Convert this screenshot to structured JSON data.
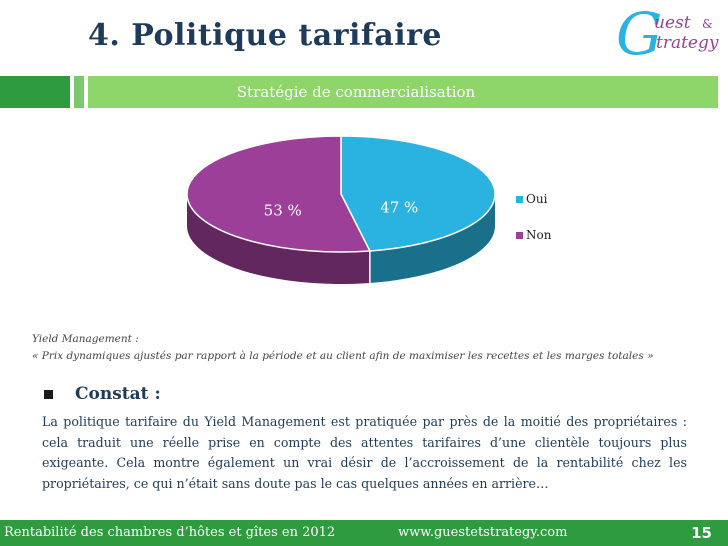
{
  "slide": {
    "title": "4. Politique tarifaire",
    "subtitle": "Stratégie de commercialisation"
  },
  "logo": {
    "letter": "G",
    "word1": "uest",
    "amp": "&",
    "word2": "trategy"
  },
  "chart_data": {
    "type": "pie",
    "title": "",
    "slices": [
      {
        "name": "Oui",
        "value": 47,
        "label": "47 %",
        "color": "#2ab3e0"
      },
      {
        "name": "Non",
        "value": 53,
        "label": "53 %",
        "color": "#9c3f98"
      }
    ],
    "legend_position": "right",
    "style": "3d"
  },
  "note": {
    "line1": "Yield Management  :",
    "line2": "« Prix dynamiques ajustés par rapport à la période et au client afin de maximiser les recettes et les marges totales »"
  },
  "constat": {
    "heading": "Constat :",
    "body": "La politique tarifaire du Yield Management est pratiquée par près de la moitié des propriétaires : cela traduit une réelle prise en compte des attentes tarifaires d’une clientèle toujours plus exigeante. Cela montre également un vrai désir de l’accroissement de la rentabilité chez les propriétaires, ce qui n’était sans doute pas le cas quelques années en arrière…"
  },
  "footer": {
    "left": "Rentabilité des chambres d’hôtes et gîtes en 2012",
    "center": "www.guestetstrategy.com",
    "page": "15"
  },
  "colors": {
    "title": "#1f3b5a",
    "band": "#8ed66a",
    "footer": "#2d9b3e",
    "oui": "#2ab3e0",
    "non": "#9c3f98"
  }
}
